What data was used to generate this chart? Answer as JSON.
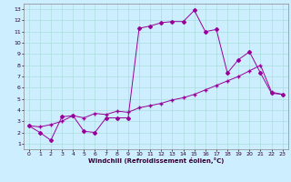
{
  "title": "",
  "xlabel": "Windchill (Refroidissement éolien,°C)",
  "background_color": "#cceeff",
  "line_color": "#990099",
  "grid_color": "#aadddd",
  "xlim": [
    -0.5,
    23.5
  ],
  "ylim": [
    0.5,
    13.5
  ],
  "xticks": [
    0,
    1,
    2,
    3,
    4,
    5,
    6,
    7,
    8,
    9,
    10,
    11,
    12,
    13,
    14,
    15,
    16,
    17,
    18,
    19,
    20,
    21,
    22,
    23
  ],
  "yticks": [
    1,
    2,
    3,
    4,
    5,
    6,
    7,
    8,
    9,
    10,
    11,
    12,
    13
  ],
  "hours": [
    0,
    1,
    2,
    3,
    4,
    5,
    6,
    7,
    8,
    9,
    10,
    11,
    12,
    13,
    14,
    15,
    16,
    17,
    18,
    19,
    20,
    21,
    22,
    23
  ],
  "wavy_line": [
    2.6,
    2.0,
    1.3,
    3.4,
    3.5,
    2.1,
    2.0,
    3.3,
    3.3,
    3.3,
    11.3,
    11.5,
    11.8,
    11.9,
    11.9,
    12.9,
    11.0,
    11.2,
    7.3,
    8.5,
    9.2,
    7.3,
    5.5,
    5.4
  ],
  "straight_line": [
    2.6,
    2.5,
    2.7,
    3.0,
    3.5,
    3.3,
    3.7,
    3.6,
    3.9,
    3.8,
    4.2,
    4.4,
    4.6,
    4.9,
    5.1,
    5.4,
    5.8,
    6.2,
    6.6,
    7.0,
    7.5,
    8.0,
    5.6,
    5.4
  ]
}
